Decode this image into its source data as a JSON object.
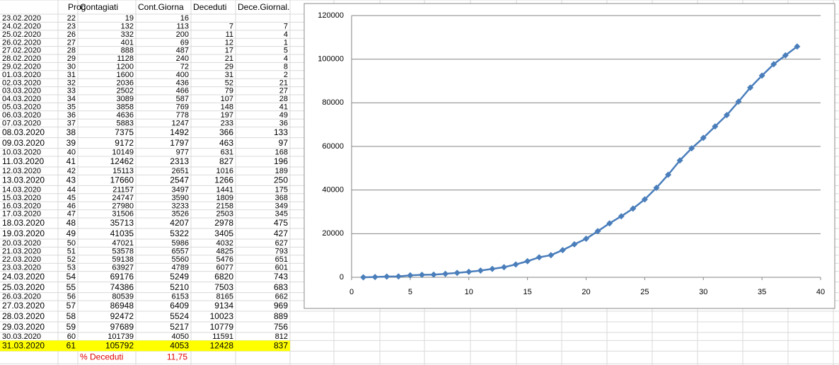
{
  "table": {
    "header": [
      "Prog",
      "Contagiati",
      "Cont.Giorna",
      "Deceduti",
      "Dece.Giornal."
    ],
    "rows": [
      [
        "23.02.2020",
        22,
        19,
        16,
        null,
        null
      ],
      [
        "24.02.2020",
        23,
        132,
        113,
        7,
        7
      ],
      [
        "25.02.2020",
        26,
        332,
        200,
        11,
        4
      ],
      [
        "26.02.2020",
        27,
        401,
        69,
        12,
        1
      ],
      [
        "27.02.2020",
        28,
        888,
        487,
        17,
        5
      ],
      [
        "28.02.2020",
        29,
        1128,
        240,
        21,
        4
      ],
      [
        "29.02.2020",
        30,
        1200,
        72,
        29,
        8
      ],
      [
        "01.03.2020",
        31,
        1600,
        400,
        31,
        2
      ],
      [
        "02.03.2020",
        32,
        2036,
        436,
        52,
        21
      ],
      [
        "03.03.2020",
        33,
        2502,
        466,
        79,
        27
      ],
      [
        "04.03.2020",
        34,
        3089,
        587,
        107,
        28
      ],
      [
        "05.03.2020",
        35,
        3858,
        769,
        148,
        41
      ],
      [
        "06.03.2020",
        36,
        4636,
        778,
        197,
        49
      ],
      [
        "07.03.2020",
        37,
        5883,
        1247,
        233,
        36
      ],
      [
        "08.03.2020",
        38,
        7375,
        1492,
        366,
        133
      ],
      [
        "09.03.2020",
        39,
        9172,
        1797,
        463,
        97
      ],
      [
        "10.03.2020",
        40,
        10149,
        977,
        631,
        168
      ],
      [
        "11.03.2020",
        41,
        12462,
        2313,
        827,
        196
      ],
      [
        "12.03.2020",
        42,
        15113,
        2651,
        1016,
        189
      ],
      [
        "13.03.2020",
        43,
        17660,
        2547,
        1266,
        250
      ],
      [
        "14.03.2020",
        44,
        21157,
        3497,
        1441,
        175
      ],
      [
        "15.03.2020",
        45,
        24747,
        3590,
        1809,
        368
      ],
      [
        "16.03.2020",
        46,
        27980,
        3233,
        2158,
        349
      ],
      [
        "17.03.2020",
        47,
        31506,
        3526,
        2503,
        345
      ],
      [
        "18.03.2020",
        48,
        35713,
        4207,
        2978,
        475
      ],
      [
        "19.03.2020",
        49,
        41035,
        5322,
        3405,
        427
      ],
      [
        "20.03.2020",
        50,
        47021,
        5986,
        4032,
        627
      ],
      [
        "21.03.2020",
        51,
        53578,
        6557,
        4825,
        793
      ],
      [
        "22.03.2020",
        52,
        59138,
        5560,
        5476,
        651
      ],
      [
        "23.03.2020",
        53,
        63927,
        4789,
        6077,
        601
      ],
      [
        "24.03.2020",
        54,
        69176,
        5249,
        6820,
        743
      ],
      [
        "25.03.2020",
        55,
        74386,
        5210,
        7503,
        683
      ],
      [
        "26.03.2020",
        56,
        80539,
        6153,
        8165,
        662
      ],
      [
        "27.03.2020",
        57,
        86948,
        6409,
        9134,
        969
      ],
      [
        "28.03.2020",
        58,
        92472,
        5524,
        10023,
        889
      ],
      [
        "29.03.2020",
        59,
        97689,
        5217,
        10779,
        756
      ],
      [
        "30.03.2020",
        60,
        101739,
        4050,
        11591,
        812
      ],
      [
        "31.03.2020",
        61,
        105792,
        4053,
        12428,
        837
      ]
    ],
    "footer": {
      "label": "% Deceduti",
      "value": "11,75"
    }
  },
  "chart_data": {
    "type": "line",
    "x": [
      1,
      2,
      3,
      4,
      5,
      6,
      7,
      8,
      9,
      10,
      11,
      12,
      13,
      14,
      15,
      16,
      17,
      18,
      19,
      20,
      21,
      22,
      23,
      24,
      25,
      26,
      27,
      28,
      29,
      30,
      31,
      32,
      33,
      34,
      35,
      36,
      37,
      38
    ],
    "values": [
      19,
      132,
      332,
      401,
      888,
      1128,
      1200,
      1600,
      2036,
      2502,
      3089,
      3858,
      4636,
      5883,
      7375,
      9172,
      10149,
      12462,
      15113,
      17660,
      21157,
      24747,
      27980,
      31506,
      35713,
      41035,
      47021,
      53578,
      59138,
      63927,
      69176,
      74386,
      80539,
      86948,
      92472,
      97689,
      101739,
      105792
    ],
    "color": "#4a7ebb",
    "marker": "diamond",
    "xlim": [
      0,
      40
    ],
    "xticks": [
      0,
      5,
      10,
      15,
      20,
      25,
      30,
      35,
      40
    ],
    "ylim": [
      0,
      120000
    ],
    "yticks": [
      0,
      20000,
      40000,
      60000,
      80000,
      100000,
      120000
    ],
    "grid": true
  }
}
